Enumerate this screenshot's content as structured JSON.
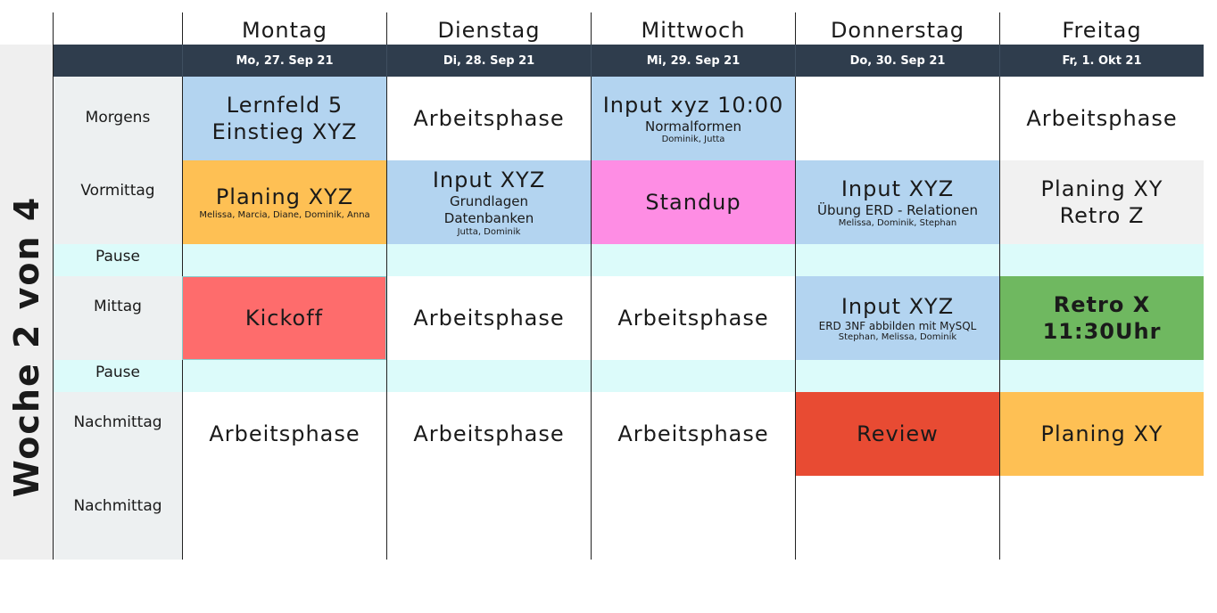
{
  "week_label": "Woche 2 von 4",
  "days": [
    {
      "name": "Montag",
      "date": "Mo, 27. Sep 21"
    },
    {
      "name": "Dienstag",
      "date": "Di, 28. Sep 21"
    },
    {
      "name": "Mittwoch",
      "date": "Mi, 29. Sep 21"
    },
    {
      "name": "Donnerstag",
      "date": "Do, 30. Sep 21"
    },
    {
      "name": "Freitag",
      "date": "Fr, 1. Okt 21"
    }
  ],
  "slots": [
    "Morgens",
    "Vormittag",
    "Pause",
    "Mittag",
    "Pause",
    "Nachmittag",
    "Nachmittag"
  ],
  "events": {
    "mon_morgens": {
      "line1": "Lernfeld 5",
      "line2": "Einstieg XYZ"
    },
    "tue_morgens": {
      "title": "Arbeitsphase"
    },
    "wed_morgens": {
      "title": "Input xyz 10:00",
      "subtitle": "Normalformen",
      "people": "Dominik, Jutta"
    },
    "fri_morgens": {
      "title": "Arbeitsphase"
    },
    "mon_vormittag": {
      "title": "Planing XYZ",
      "people": "Melissa, Marcia, Diane, Dominik, Anna"
    },
    "tue_vormittag": {
      "title": "Input XYZ",
      "line2": "Grundlagen",
      "line3": "Datenbanken",
      "people": "Jutta, Dominik"
    },
    "wed_vormittag": {
      "title": "Standup"
    },
    "thu_vormittag": {
      "title": "Input XYZ",
      "subtitle": "Übung ERD - Relationen",
      "people": "Melissa, Dominik, Stephan"
    },
    "fri_vormittag": {
      "line1": "Planing XY",
      "line2": "Retro Z"
    },
    "mon_mittag": {
      "title": "Kickoff"
    },
    "tue_mittag": {
      "title": "Arbeitsphase"
    },
    "wed_mittag": {
      "title": "Arbeitsphase"
    },
    "thu_mittag": {
      "title": "Input XYZ",
      "subtitle": "ERD 3NF abbilden mit MySQL",
      "people": "Stephan, Melissa, Dominik"
    },
    "fri_mittag": {
      "line1": "Retro X",
      "line2": "11:30Uhr"
    },
    "mon_nachmittag": {
      "title": "Arbeitsphase"
    },
    "tue_nachmittag": {
      "title": "Arbeitsphase"
    },
    "wed_nachmittag": {
      "title": "Arbeitsphase"
    },
    "thu_nachmittag": {
      "title": "Review"
    },
    "fri_nachmittag": {
      "title": "Planing XY"
    }
  },
  "colors": {
    "header_bar": "#2f3d4d",
    "input_blue": "#b3d4f0",
    "planing_orange": "#fec054",
    "standup_pink": "#fe8de4",
    "kickoff_red": "#fe6c6c",
    "retro_green": "#6fb860",
    "review_red": "#e84b33",
    "pause_cyan": "#dcfbfa",
    "slot_gray": "#edf0f1"
  }
}
